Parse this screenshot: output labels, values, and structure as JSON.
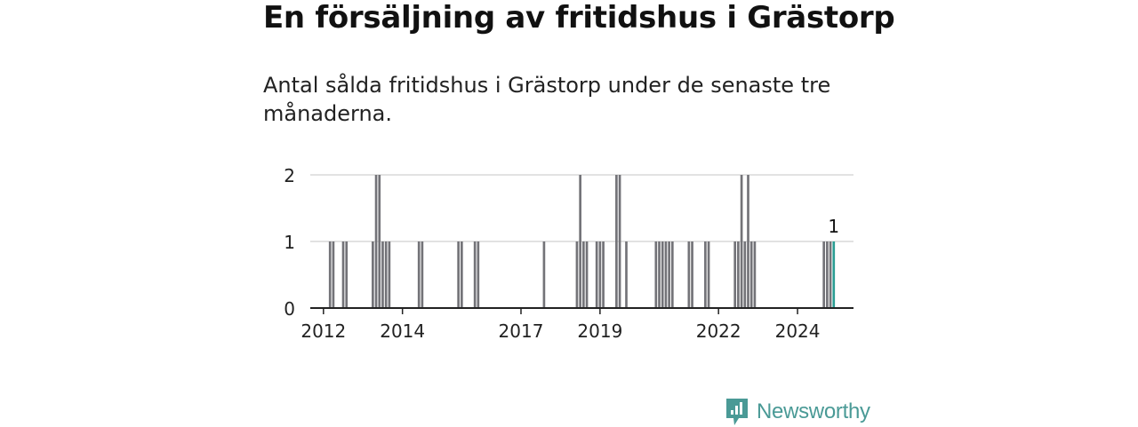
{
  "header": {
    "title": "En försäljning av fritidshus i Grästorp",
    "subtitle": "Antal sålda fritidshus i Grästorp under de senaste tre månaderna."
  },
  "brand": {
    "name": "Newsworthy",
    "icon": "newsworthy-logo-icon"
  },
  "colors": {
    "bar": "#737378",
    "highlight": "#2a9d93",
    "grid": "#d9d9d9",
    "axis": "#222222",
    "brand": "#4a9a96"
  },
  "chart_data": {
    "type": "bar",
    "ylim": [
      0,
      2
    ],
    "yticks": [
      "0",
      "1",
      "2"
    ],
    "xticks": [
      "2012",
      "2014",
      "2017",
      "2019",
      "2022",
      "2024"
    ],
    "x_range": [
      "2011-09",
      "2025-06"
    ],
    "series": [
      {
        "points": [
          {
            "x": "2012-03",
            "y": 1
          },
          {
            "x": "2012-04",
            "y": 1
          },
          {
            "x": "2012-07",
            "y": 1
          },
          {
            "x": "2012-08",
            "y": 1
          },
          {
            "x": "2013-04",
            "y": 1
          },
          {
            "x": "2013-05",
            "y": 2
          },
          {
            "x": "2013-06",
            "y": 2
          },
          {
            "x": "2013-07",
            "y": 1
          },
          {
            "x": "2013-08",
            "y": 1
          },
          {
            "x": "2013-09",
            "y": 1
          },
          {
            "x": "2014-06",
            "y": 1
          },
          {
            "x": "2014-07",
            "y": 1
          },
          {
            "x": "2015-06",
            "y": 1
          },
          {
            "x": "2015-07",
            "y": 1
          },
          {
            "x": "2015-11",
            "y": 1
          },
          {
            "x": "2015-12",
            "y": 1
          },
          {
            "x": "2017-08",
            "y": 1
          },
          {
            "x": "2018-06",
            "y": 1
          },
          {
            "x": "2018-07",
            "y": 2
          },
          {
            "x": "2018-08",
            "y": 1
          },
          {
            "x": "2018-09",
            "y": 1
          },
          {
            "x": "2018-12",
            "y": 1
          },
          {
            "x": "2019-01",
            "y": 1
          },
          {
            "x": "2019-02",
            "y": 1
          },
          {
            "x": "2019-06",
            "y": 2
          },
          {
            "x": "2019-07",
            "y": 2
          },
          {
            "x": "2019-09",
            "y": 1
          },
          {
            "x": "2020-06",
            "y": 1
          },
          {
            "x": "2020-07",
            "y": 1
          },
          {
            "x": "2020-08",
            "y": 1
          },
          {
            "x": "2020-09",
            "y": 1
          },
          {
            "x": "2020-10",
            "y": 1
          },
          {
            "x": "2020-11",
            "y": 1
          },
          {
            "x": "2021-04",
            "y": 1
          },
          {
            "x": "2021-05",
            "y": 1
          },
          {
            "x": "2021-09",
            "y": 1
          },
          {
            "x": "2021-10",
            "y": 1
          },
          {
            "x": "2022-06",
            "y": 1
          },
          {
            "x": "2022-07",
            "y": 1
          },
          {
            "x": "2022-08",
            "y": 2
          },
          {
            "x": "2022-09",
            "y": 1
          },
          {
            "x": "2022-10",
            "y": 2
          },
          {
            "x": "2022-11",
            "y": 1
          },
          {
            "x": "2022-12",
            "y": 1
          },
          {
            "x": "2024-09",
            "y": 1
          },
          {
            "x": "2024-10",
            "y": 1
          },
          {
            "x": "2024-11",
            "y": 1
          },
          {
            "x": "2024-12",
            "y": 1
          }
        ]
      }
    ],
    "highlight_label": "1"
  }
}
